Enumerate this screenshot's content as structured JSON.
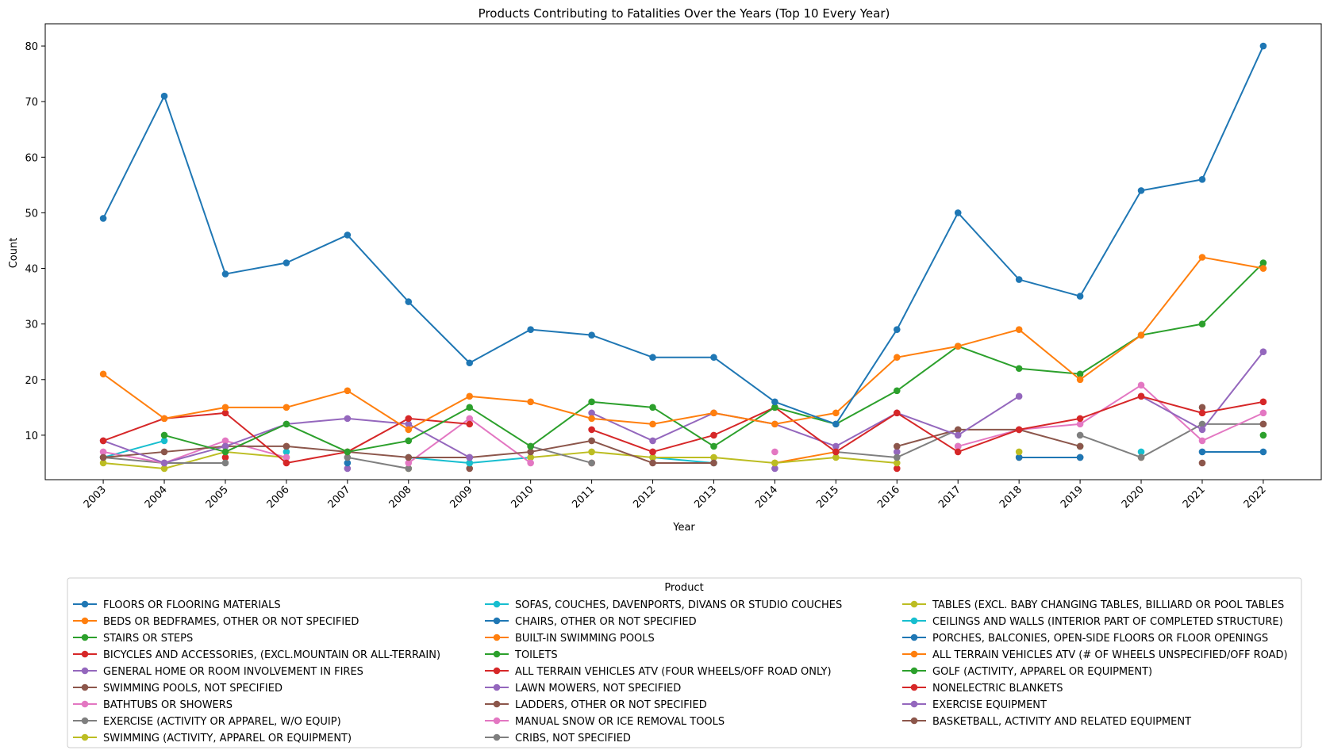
{
  "chart_data": {
    "type": "line",
    "title": "Products Contributing to Fatalities Over the Years (Top 10 Every Year)",
    "xlabel": "Year",
    "ylabel": "Count",
    "ylim": [
      2,
      84
    ],
    "yticks": [
      10,
      20,
      30,
      40,
      50,
      60,
      70,
      80
    ],
    "x": [
      "2003",
      "2004",
      "2005",
      "2006",
      "2007",
      "2008",
      "2009",
      "2010",
      "2011",
      "2012",
      "2013",
      "2014",
      "2015",
      "2016",
      "2017",
      "2018",
      "2019",
      "2020",
      "2021",
      "2022"
    ],
    "legend_title": "Product",
    "legend_position": "bottom",
    "grid": false,
    "series": [
      {
        "name": "FLOORS OR FLOORING MATERIALS",
        "color": "#1f77b4",
        "values": [
          49,
          71,
          39,
          41,
          46,
          34,
          23,
          29,
          28,
          24,
          24,
          16,
          12,
          29,
          50,
          38,
          35,
          54,
          56,
          80
        ]
      },
      {
        "name": "BEDS OR BEDFRAMES, OTHER OR NOT SPECIFIED",
        "color": "#ff7f0e",
        "values": [
          21,
          13,
          15,
          15,
          18,
          11,
          17,
          16,
          13,
          12,
          14,
          12,
          14,
          24,
          26,
          29,
          20,
          28,
          42,
          40
        ]
      },
      {
        "name": "STAIRS OR STEPS",
        "color": "#2ca02c",
        "values": [
          null,
          10,
          7,
          12,
          7,
          9,
          15,
          8,
          16,
          15,
          8,
          15,
          12,
          18,
          26,
          22,
          21,
          28,
          30,
          41
        ]
      },
      {
        "name": "BICYCLES AND ACCESSORIES, (EXCL.MOUNTAIN OR ALL-TERRAIN)",
        "color": "#d62728",
        "values": [
          9,
          13,
          14,
          5,
          7,
          13,
          12,
          null,
          11,
          7,
          10,
          15,
          7,
          14,
          7,
          11,
          13,
          17,
          14,
          16
        ]
      },
      {
        "name": "GENERAL HOME OR ROOM INVOLVEMENT IN FIRES",
        "color": "#9467bd",
        "values": [
          9,
          5,
          8,
          12,
          13,
          12,
          6,
          null,
          14,
          9,
          14,
          12,
          8,
          14,
          10,
          17,
          null,
          17,
          11,
          25
        ]
      },
      {
        "name": "SWIMMING POOLS, NOT SPECIFIED",
        "color": "#8c564b",
        "values": [
          6,
          7,
          8,
          8,
          7,
          6,
          6,
          7,
          9,
          5,
          5,
          null,
          null,
          8,
          11,
          11,
          8,
          null,
          null,
          12
        ]
      },
      {
        "name": "BATHTUBS OR SHOWERS",
        "color": "#e377c2",
        "values": [
          7,
          5,
          9,
          6,
          null,
          5,
          13,
          5,
          null,
          null,
          null,
          7,
          null,
          null,
          8,
          11,
          12,
          19,
          9,
          14
        ]
      },
      {
        "name": "EXERCISE (ACTIVITY OR APPAREL, W/O EQUIP)",
        "color": "#7f7f7f",
        "values": [
          6,
          5,
          5,
          null,
          6,
          4,
          null,
          8,
          5,
          null,
          null,
          null,
          7,
          6,
          11,
          null,
          10,
          6,
          12,
          12
        ]
      },
      {
        "name": "SWIMMING (ACTIVITY, APPAREL OR EQUIPMENT)",
        "color": "#bcbd22",
        "values": [
          5,
          4,
          7,
          6,
          null,
          4,
          null,
          6,
          7,
          6,
          6,
          5,
          6,
          5,
          null,
          7,
          null,
          null,
          null,
          null
        ]
      },
      {
        "name": "SOFAS, COUCHES, DAVENPORTS, DIVANS OR STUDIO COUCHES",
        "color": "#17becf",
        "values": [
          6,
          9,
          null,
          7,
          null,
          6,
          5,
          6,
          null,
          6,
          5,
          null,
          null,
          null,
          null,
          null,
          null,
          null,
          null,
          null
        ]
      },
      {
        "name": "CHAIRS, OTHER OR NOT SPECIFIED",
        "color": "#1f77b4",
        "values": [
          null,
          null,
          null,
          null,
          5,
          null,
          null,
          null,
          null,
          null,
          null,
          null,
          null,
          null,
          null,
          6,
          6,
          null,
          7,
          7
        ]
      },
      {
        "name": "BUILT-IN SWIMMING POOLS",
        "color": "#ff7f0e",
        "values": [
          null,
          null,
          null,
          8,
          null,
          null,
          null,
          null,
          null,
          null,
          null,
          5,
          7,
          null,
          null,
          6,
          null,
          6,
          null,
          null
        ]
      },
      {
        "name": "TOILETS",
        "color": "#2ca02c",
        "values": [
          null,
          null,
          null,
          null,
          null,
          null,
          5,
          null,
          null,
          null,
          null,
          null,
          null,
          null,
          8,
          null,
          8,
          null,
          null,
          10
        ]
      },
      {
        "name": "ALL TERRAIN VEHICLES ATV (FOUR WHEELS/OFF ROAD ONLY)",
        "color": "#d62728",
        "values": [
          null,
          null,
          6,
          null,
          null,
          null,
          null,
          null,
          5,
          null,
          null,
          null,
          null,
          4,
          null,
          null,
          null,
          null,
          null,
          null
        ]
      },
      {
        "name": "LAWN MOWERS, NOT SPECIFIED",
        "color": "#9467bd",
        "values": [
          null,
          null,
          null,
          null,
          4,
          null,
          null,
          null,
          null,
          7,
          null,
          4,
          null,
          7,
          null,
          null,
          null,
          null,
          null,
          null
        ]
      },
      {
        "name": "LADDERS, OTHER OR NOT SPECIFIED",
        "color": "#8c564b",
        "values": [
          null,
          null,
          null,
          null,
          null,
          null,
          4,
          null,
          null,
          null,
          null,
          null,
          null,
          null,
          null,
          null,
          6,
          null,
          5,
          null
        ]
      },
      {
        "name": "MANUAL SNOW OR ICE REMOVAL TOOLS",
        "color": "#e377c2",
        "values": [
          null,
          null,
          null,
          null,
          null,
          null,
          null,
          null,
          null,
          null,
          null,
          null,
          null,
          null,
          null,
          null,
          null,
          null,
          null,
          null
        ]
      },
      {
        "name": "CRIBS, NOT SPECIFIED",
        "color": "#7f7f7f",
        "values": [
          null,
          null,
          null,
          null,
          null,
          null,
          null,
          null,
          null,
          null,
          null,
          null,
          null,
          null,
          null,
          null,
          null,
          null,
          null,
          null
        ]
      },
      {
        "name": "TABLES (EXCL.  BABY CHANGING TABLES, BILLIARD OR POOL TABLES",
        "color": "#bcbd22",
        "values": [
          null,
          null,
          null,
          null,
          null,
          null,
          null,
          null,
          null,
          null,
          null,
          null,
          null,
          null,
          null,
          null,
          null,
          null,
          null,
          null
        ]
      },
      {
        "name": "CEILINGS AND WALLS (INTERIOR PART OF COMPLETED STRUCTURE)",
        "color": "#17becf",
        "values": [
          null,
          null,
          null,
          null,
          null,
          null,
          null,
          null,
          null,
          null,
          null,
          null,
          null,
          null,
          null,
          null,
          null,
          7,
          null,
          null
        ]
      },
      {
        "name": "PORCHES, BALCONIES, OPEN-SIDE FLOORS OR FLOOR OPENINGS",
        "color": "#1f77b4",
        "values": [
          null,
          null,
          null,
          null,
          null,
          null,
          null,
          null,
          null,
          null,
          null,
          null,
          null,
          null,
          null,
          null,
          null,
          null,
          null,
          null
        ]
      },
      {
        "name": "ALL TERRAIN VEHICLES ATV (# OF WHEELS UNSPECIFIED/OFF ROAD)",
        "color": "#ff7f0e",
        "values": [
          null,
          null,
          null,
          null,
          null,
          null,
          null,
          null,
          null,
          null,
          null,
          null,
          null,
          null,
          null,
          null,
          null,
          null,
          null,
          null
        ]
      },
      {
        "name": "GOLF (ACTIVITY, APPAREL OR EQUIPMENT)",
        "color": "#2ca02c",
        "values": [
          null,
          null,
          null,
          null,
          null,
          null,
          null,
          null,
          null,
          null,
          null,
          null,
          null,
          null,
          null,
          null,
          null,
          null,
          null,
          null
        ]
      },
      {
        "name": "NONELECTRIC BLANKETS",
        "color": "#d62728",
        "values": [
          null,
          null,
          null,
          null,
          null,
          null,
          null,
          null,
          null,
          null,
          null,
          null,
          null,
          null,
          null,
          null,
          null,
          null,
          null,
          null
        ]
      },
      {
        "name": "EXERCISE EQUIPMENT",
        "color": "#9467bd",
        "values": [
          null,
          null,
          null,
          null,
          null,
          null,
          null,
          null,
          null,
          null,
          null,
          null,
          null,
          null,
          null,
          null,
          null,
          null,
          null,
          null
        ]
      },
      {
        "name": "BASKETBALL, ACTIVITY AND RELATED EQUIPMENT",
        "color": "#8c564b",
        "values": [
          null,
          null,
          null,
          null,
          null,
          null,
          null,
          null,
          null,
          null,
          null,
          null,
          null,
          null,
          null,
          null,
          null,
          null,
          15,
          null
        ]
      }
    ]
  }
}
